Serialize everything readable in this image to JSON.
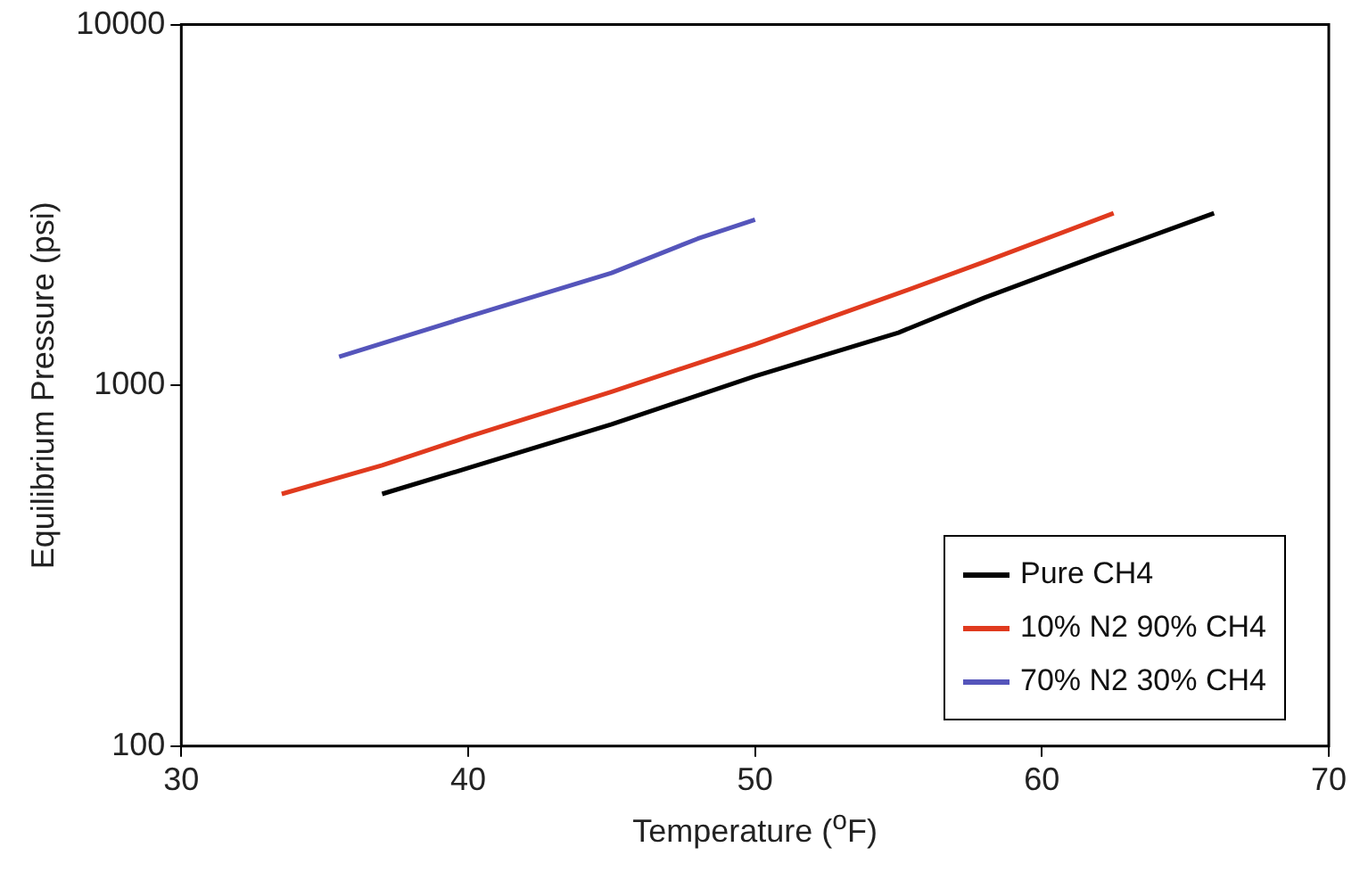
{
  "chart_data": {
    "type": "line",
    "xlabel": "Temperature ($^{o}$F)",
    "ylabel": "Equilibrium Pressure (psi)",
    "log": "y",
    "grid": false,
    "legend": "bottom right",
    "marker": "none",
    "line_style": "solid",
    "xlim": [
      30,
      70
    ],
    "xticks": [
      30,
      40,
      50,
      60,
      70
    ],
    "ylim": [
      100,
      10000
    ],
    "yticks": [
      100,
      1000,
      10000
    ],
    "series": [
      {
        "name": "Pure CH4",
        "color": "#000000",
        "x": [
          37,
          40,
          45,
          50,
          55,
          58,
          62,
          66
        ],
        "values": [
          500,
          590,
          780,
          1060,
          1400,
          1750,
          2300,
          3000
        ]
      },
      {
        "name": "10% N2 90% CH4",
        "color": "#e03a1e",
        "x": [
          33.5,
          37,
          40,
          45,
          50,
          55,
          58,
          62.5
        ],
        "values": [
          500,
          600,
          720,
          960,
          1300,
          1800,
          2200,
          3000
        ]
      },
      {
        "name": "70% N2 30% CH4",
        "color": "#5555bb",
        "x": [
          35.5,
          40,
          45,
          48,
          50
        ],
        "values": [
          1200,
          1550,
          2050,
          2550,
          2880
        ]
      }
    ]
  }
}
